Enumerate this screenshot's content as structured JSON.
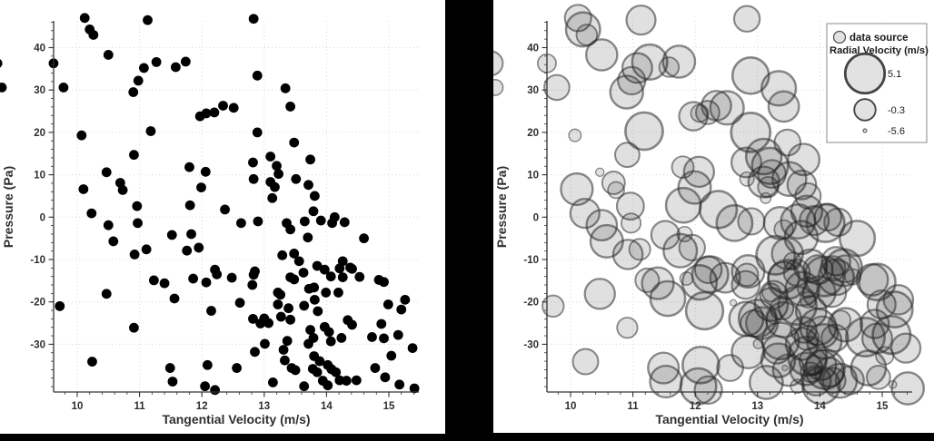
{
  "page": {
    "background": "#000000",
    "panel_background": "#ffffff"
  },
  "colors": {
    "dot": "#000000",
    "bubble_fill": "rgba(0,0,0,0.12)",
    "bubble_stroke": "rgba(45,45,45,0.55)",
    "grid": "#d8d8d8",
    "axis": "#333333",
    "label": "#2f2f2f",
    "legend_border": "#888888",
    "legend_symbol_fill": "#e2e2e2",
    "legend_symbol_stroke": "#555555"
  },
  "chart_data": [
    {
      "type": "scatter",
      "title": "",
      "xlabel": "Tangential Velocity (m/s)",
      "ylabel": "Pressure (Pa)",
      "xticks": [
        10,
        11,
        12,
        13,
        14,
        15
      ],
      "yticks": [
        -30,
        -20,
        -10,
        0,
        10,
        20,
        30,
        40
      ],
      "xlim": [
        9.62,
        15.5
      ],
      "ylim": [
        -41.3,
        46.4
      ],
      "grid": true,
      "marker": {
        "color": "#000000",
        "radius": 5.4
      },
      "points_note": "each point is [tangential_velocity, pressure, radial_velocity]; radial_velocity is only encoded (as bubble size) in the second chart",
      "points": [
        [
          10.12,
          47.0,
          1.2
        ],
        [
          10.2,
          44.3,
          3.5
        ],
        [
          10.26,
          43.0,
          -0.5
        ],
        [
          11.13,
          46.5,
          2.0
        ],
        [
          12.83,
          46.8,
          1.0
        ],
        [
          10.5,
          38.3,
          2.6
        ],
        [
          8.72,
          36.3,
          0.5
        ],
        [
          9.62,
          36.3,
          -1.2
        ],
        [
          11.07,
          35.2,
          2.2
        ],
        [
          11.27,
          36.6,
          3.8
        ],
        [
          11.58,
          35.4,
          -0.8
        ],
        [
          11.74,
          36.7,
          2.9
        ],
        [
          10.98,
          32.2,
          1.5
        ],
        [
          10.9,
          29.5,
          3.1
        ],
        [
          8.79,
          30.6,
          -2.0
        ],
        [
          9.78,
          30.6,
          0.8
        ],
        [
          12.89,
          33.4,
          4.2
        ],
        [
          13.34,
          30.4,
          3.6
        ],
        [
          13.42,
          26.1,
          2.4
        ],
        [
          11.97,
          23.8,
          1.8
        ],
        [
          12.07,
          24.5,
          -1.5
        ],
        [
          12.2,
          24.7,
          0.3
        ],
        [
          12.34,
          26.3,
          2.1
        ],
        [
          12.51,
          25.8,
          3.3
        ],
        [
          11.18,
          20.3,
          4.5
        ],
        [
          10.07,
          19.3,
          -3.0
        ],
        [
          12.89,
          20.0,
          5.0
        ],
        [
          13.48,
          17.6,
          1.1
        ],
        [
          10.91,
          14.7,
          0.6
        ],
        [
          13.1,
          14.3,
          3.9
        ],
        [
          13.74,
          13.6,
          2.7
        ],
        [
          11.8,
          11.8,
          -0.2
        ],
        [
          12.06,
          10.7,
          2.3
        ],
        [
          10.47,
          10.6,
          -4.2
        ],
        [
          13.2,
          12.1,
          4.1
        ],
        [
          13.23,
          10.2,
          1.6
        ],
        [
          11.99,
          7.0,
          3.0
        ],
        [
          10.1,
          6.6,
          2.8
        ],
        [
          10.69,
          8.1,
          0.1
        ],
        [
          10.73,
          6.4,
          -1.8
        ],
        [
          13.1,
          8.3,
          2.5
        ],
        [
          13.17,
          7.1,
          -0.6
        ],
        [
          13.51,
          9.0,
          3.4
        ],
        [
          13.71,
          7.6,
          1.9
        ],
        [
          12.82,
          12.9,
          2.2
        ],
        [
          12.83,
          9.0,
          -2.5
        ],
        [
          10.96,
          2.6,
          1.4
        ],
        [
          11.81,
          2.8,
          3.7
        ],
        [
          10.23,
          0.9,
          2.0
        ],
        [
          12.37,
          1.8,
          4.4
        ],
        [
          13.81,
          5.0,
          0.9
        ],
        [
          13.13,
          4.5,
          -3.5
        ],
        [
          13.79,
          1.4,
          2.6
        ],
        [
          14.13,
          0.0,
          1.3
        ],
        [
          13.7,
          -4.8,
          3.2
        ],
        [
          10.5,
          -1.9,
          2.4
        ],
        [
          10.97,
          -1.4,
          -0.9
        ],
        [
          11.52,
          -4.2,
          1.7
        ],
        [
          10.58,
          -5.7,
          3.0
        ],
        [
          11.83,
          -4.0,
          -2.2
        ],
        [
          12.63,
          -1.4,
          4.0
        ],
        [
          12.9,
          -1.0,
          1.2
        ],
        [
          13.36,
          -1.4,
          2.9
        ],
        [
          13.42,
          -2.9,
          -1.1
        ],
        [
          13.65,
          -1.0,
          3.5
        ],
        [
          13.91,
          -0.8,
          2.0
        ],
        [
          14.09,
          -1.4,
          4.6
        ],
        [
          14.29,
          -1.2,
          1.5
        ],
        [
          14.6,
          -5.0,
          3.8
        ],
        [
          10.92,
          -8.8,
          2.1
        ],
        [
          11.11,
          -7.6,
          -0.4
        ],
        [
          11.76,
          -7.9,
          3.3
        ],
        [
          11.95,
          -7.2,
          1.0
        ],
        [
          13.29,
          -9.0,
          4.8
        ],
        [
          13.48,
          -8.6,
          2.6
        ],
        [
          13.56,
          -10.4,
          -1.6
        ],
        [
          13.85,
          -11.5,
          3.1
        ],
        [
          14.26,
          -10.4,
          1.8
        ],
        [
          14.38,
          -11.9,
          4.3
        ],
        [
          11.23,
          -14.9,
          0.4
        ],
        [
          11.4,
          -15.6,
          2.8
        ],
        [
          11.86,
          -14.5,
          -2.8
        ],
        [
          12.07,
          -15.4,
          3.6
        ],
        [
          12.21,
          -12.4,
          1.3
        ],
        [
          12.24,
          -13.5,
          4.1
        ],
        [
          12.48,
          -14.3,
          2.2
        ],
        [
          12.83,
          -13.6,
          0.0
        ],
        [
          12.85,
          -12.8,
          3.0
        ],
        [
          12.81,
          -16.0,
          1.6
        ],
        [
          13.22,
          -17.8,
          -1.3
        ],
        [
          13.42,
          -14.2,
          2.5
        ],
        [
          13.48,
          -14.7,
          4.9
        ],
        [
          13.63,
          -13.1,
          1.1
        ],
        [
          13.72,
          -16.9,
          3.4
        ],
        [
          13.8,
          -16.6,
          -0.7
        ],
        [
          13.97,
          -12.4,
          2.0
        ],
        [
          14.07,
          -14.0,
          5.1
        ],
        [
          14.21,
          -12.1,
          0.7
        ],
        [
          14.26,
          -14.2,
          3.9
        ],
        [
          14.41,
          -12.2,
          1.4
        ],
        [
          14.53,
          -14.1,
          -2.0
        ],
        [
          14.84,
          -14.8,
          2.7
        ],
        [
          14.92,
          -15.3,
          4.2
        ],
        [
          14.19,
          -17.8,
          1.9
        ],
        [
          9.72,
          -21.0,
          -0.3
        ],
        [
          10.47,
          -18.1,
          2.3
        ],
        [
          11.56,
          -19.2,
          3.7
        ],
        [
          12.15,
          -22.1,
          4.4
        ],
        [
          12.61,
          -20.2,
          -4.8
        ],
        [
          13.26,
          -18.3,
          1.5
        ],
        [
          13.22,
          -20.6,
          3.2
        ],
        [
          13.39,
          -21.5,
          0.2
        ],
        [
          13.64,
          -20.9,
          4.7
        ],
        [
          13.86,
          -22.2,
          2.4
        ],
        [
          13.81,
          -19.5,
          -1.9
        ],
        [
          13.99,
          -17.8,
          3.0
        ],
        [
          14.99,
          -20.6,
          1.7
        ],
        [
          15.2,
          -21.8,
          4.0
        ],
        [
          15.26,
          -19.5,
          2.1
        ],
        [
          10.91,
          -26.1,
          -0.6
        ],
        [
          12.82,
          -24.0,
          3.5
        ],
        [
          12.94,
          -25.1,
          1.2
        ],
        [
          13.0,
          -23.9,
          4.5
        ],
        [
          13.07,
          -25.0,
          2.8
        ],
        [
          13.27,
          -23.5,
          -2.4
        ],
        [
          13.42,
          -24.2,
          3.8
        ],
        [
          13.74,
          -26.6,
          1.0
        ],
        [
          13.97,
          -25.9,
          4.1
        ],
        [
          14.04,
          -27.1,
          2.6
        ],
        [
          14.34,
          -24.3,
          -1.0
        ],
        [
          14.41,
          -25.4,
          3.3
        ],
        [
          14.88,
          -25.2,
          1.8
        ],
        [
          15.15,
          -27.8,
          4.6
        ],
        [
          14.92,
          -28.6,
          2.2
        ],
        [
          12.85,
          -31.8,
          3.1
        ],
        [
          13.01,
          -29.9,
          -3.8
        ],
        [
          13.31,
          -31.3,
          1.6
        ],
        [
          13.37,
          -29.2,
          4.3
        ],
        [
          13.71,
          -29.9,
          2.9
        ],
        [
          13.79,
          -28.5,
          0.5
        ],
        [
          14.07,
          -29.3,
          3.6
        ],
        [
          14.24,
          -28.5,
          1.3
        ],
        [
          14.73,
          -28.3,
          4.8
        ],
        [
          15.38,
          -30.9,
          2.0
        ],
        [
          15.04,
          -32.7,
          -1.4
        ],
        [
          10.24,
          -34.1,
          0.9
        ],
        [
          11.49,
          -35.6,
          2.5
        ],
        [
          12.09,
          -34.9,
          4.2
        ],
        [
          12.56,
          -35.6,
          1.1
        ],
        [
          13.33,
          -33.8,
          3.4
        ],
        [
          13.44,
          -35.6,
          -5.0
        ],
        [
          13.5,
          -36.1,
          2.7
        ],
        [
          13.8,
          -32.8,
          4.9
        ],
        [
          13.89,
          -34.0,
          1.4
        ],
        [
          13.78,
          -35.8,
          3.0
        ],
        [
          13.85,
          -36.6,
          -0.8
        ],
        [
          14.02,
          -34.9,
          2.3
        ],
        [
          14.08,
          -35.9,
          5.0
        ],
        [
          14.15,
          -36.6,
          1.9
        ],
        [
          14.78,
          -35.6,
          3.7
        ],
        [
          14.94,
          -37.8,
          0.3
        ],
        [
          11.53,
          -38.8,
          2.8
        ],
        [
          12.05,
          -39.9,
          4.0
        ],
        [
          12.21,
          -40.8,
          1.5
        ],
        [
          13.14,
          -39.0,
          3.2
        ],
        [
          13.64,
          -39.9,
          -2.6
        ],
        [
          13.94,
          -38.6,
          2.1
        ],
        [
          14.02,
          -39.7,
          4.4
        ],
        [
          14.21,
          -38.5,
          0.8
        ],
        [
          14.32,
          -38.6,
          3.5
        ],
        [
          14.48,
          -38.5,
          1.7
        ],
        [
          15.17,
          -39.5,
          -4.4
        ],
        [
          15.41,
          -40.4,
          2.9
        ]
      ]
    },
    {
      "type": "scatter",
      "subtype": "bubble",
      "title": "",
      "xlabel": "Tangential Velocity (m/s)",
      "ylabel": "Pressure (Pa)",
      "xticks": [
        10,
        11,
        12,
        13,
        14,
        15
      ],
      "yticks": [
        -30,
        -20,
        -10,
        0,
        10,
        20,
        30,
        40
      ],
      "xlim": [
        9.62,
        15.5
      ],
      "ylim": [
        -41.3,
        46.4
      ],
      "grid": true,
      "points_source": "same [x, y, radial_velocity] points as chart 0; bubble area encodes radial velocity",
      "legend": {
        "position": "top-right",
        "series_label": "data source",
        "size_title": "Radial Velocity (m/s)",
        "size_values": [
          "5.1",
          "-0.3",
          "-5.6"
        ]
      },
      "size_scale": {
        "value_range": [
          -5.6,
          5.1
        ],
        "radius_range_px": [
          2,
          21.7
        ]
      }
    }
  ]
}
